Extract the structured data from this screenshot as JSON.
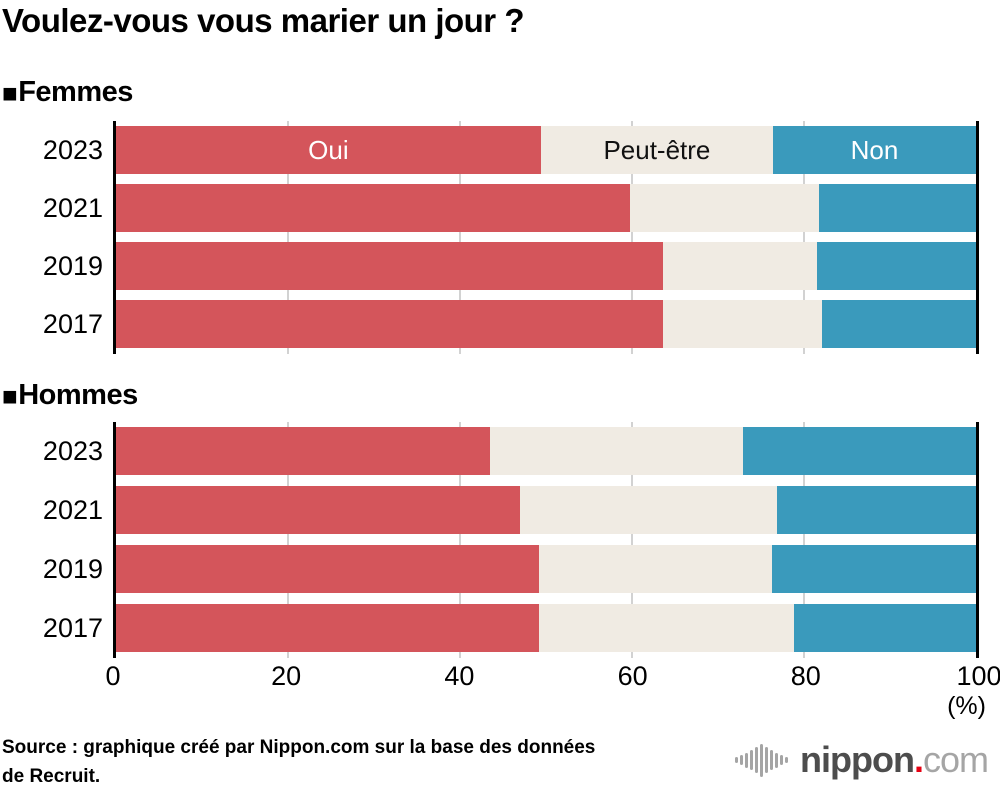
{
  "title": "Voulez-vous vous marier un jour ?",
  "legend": {
    "oui": "Oui",
    "peut_etre": "Peut-être",
    "non": "Non"
  },
  "axis": {
    "ticks": [
      0,
      20,
      40,
      60,
      80,
      100
    ],
    "unit_label": "(%)",
    "xlim": [
      0,
      100
    ]
  },
  "colors": {
    "oui": "#d4555b",
    "peut_etre": "#f0ebe3",
    "non": "#3a9abc",
    "gridline": "#d2d2d2",
    "axis": "#000000",
    "logo_dark": "#4d4d4d",
    "logo_gray": "#a5a5a5",
    "logo_dot_red": "#e60012"
  },
  "chart_data": [
    {
      "type": "bar",
      "stacked": true,
      "orientation": "horizontal",
      "section_label": "Femmes",
      "categories": [
        "2023",
        "2021",
        "2019",
        "2017"
      ],
      "series": [
        {
          "name": "Oui",
          "values": [
            49.4,
            59.8,
            63.6,
            63.6
          ]
        },
        {
          "name": "Peut-être",
          "values": [
            27.0,
            21.9,
            17.9,
            18.5
          ]
        },
        {
          "name": "Non",
          "values": [
            23.6,
            18.3,
            18.5,
            17.9
          ]
        }
      ],
      "xlim": [
        0,
        100
      ],
      "labels_in_first_row": true,
      "legend_position": "inside-first-bar",
      "grid": true
    },
    {
      "type": "bar",
      "stacked": true,
      "orientation": "horizontal",
      "section_label": "Hommes",
      "categories": [
        "2023",
        "2021",
        "2019",
        "2017"
      ],
      "series": [
        {
          "name": "Oui",
          "values": [
            43.5,
            47.0,
            49.2,
            49.2
          ]
        },
        {
          "name": "Peut-être",
          "values": [
            29.4,
            29.9,
            27.1,
            29.6
          ]
        },
        {
          "name": "Non",
          "values": [
            27.1,
            23.1,
            23.7,
            21.2
          ]
        }
      ],
      "xlim": [
        0,
        100
      ],
      "labels_in_first_row": false,
      "grid": true
    }
  ],
  "source": {
    "line1": "Source : graphique créé par Nippon.com sur la base des données",
    "line2": "de Recruit."
  },
  "logo": {
    "name": "nippon",
    "dot": ".",
    "tld": "com"
  }
}
